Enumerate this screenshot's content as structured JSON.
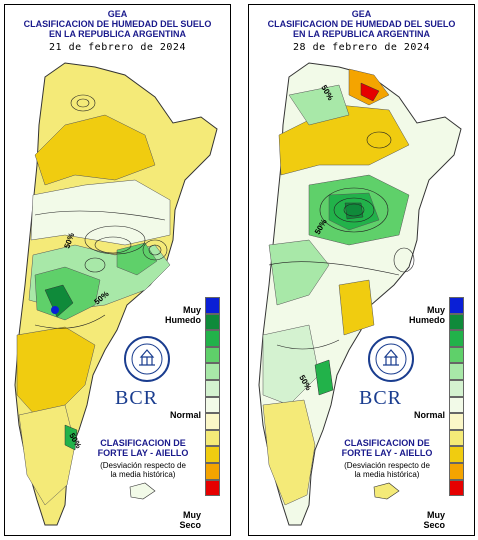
{
  "header": {
    "line1": "GEA",
    "line2": "CLASIFICACION DE HUMEDAD DEL SUELO",
    "line3": "EN LA REPUBLICA ARGENTINA"
  },
  "panels": [
    {
      "date": "21 de febrero de 2024"
    },
    {
      "date": "28 de febrero de 2024"
    }
  ],
  "legend": {
    "top_label": "Muy\nHumedo",
    "mid_label": "Normal",
    "bottom_label": "Muy\nSeco",
    "colors": [
      "#0a1fd6",
      "#0f8a3a",
      "#22b24a",
      "#5fd06a",
      "#a8e8a8",
      "#d4f2d0",
      "#f2fae8",
      "#fbf7c8",
      "#f4ea78",
      "#f0cc10",
      "#f4a400",
      "#e60000"
    ]
  },
  "branding": {
    "logo_text": "BCR",
    "title": "CLASIFICACION DE\nFORTE LAY - AIELLO",
    "subtitle": "(Desviación respecto de\nla media histórica)"
  },
  "contour_labels": [
    "50%",
    "50%",
    "50%",
    "50%",
    "50%",
    "50%"
  ]
}
